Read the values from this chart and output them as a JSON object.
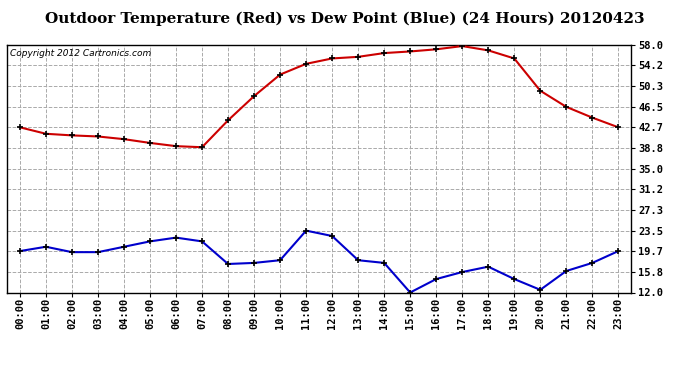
{
  "title": "Outdoor Temperature (Red) vs Dew Point (Blue) (24 Hours) 20120423",
  "copyright_text": "Copyright 2012 Cartronics.com",
  "hours": [
    "00:00",
    "01:00",
    "02:00",
    "03:00",
    "04:00",
    "05:00",
    "06:00",
    "07:00",
    "08:00",
    "09:00",
    "10:00",
    "11:00",
    "12:00",
    "13:00",
    "14:00",
    "15:00",
    "16:00",
    "17:00",
    "18:00",
    "19:00",
    "20:00",
    "21:00",
    "22:00",
    "23:00"
  ],
  "temp_red": [
    42.7,
    41.5,
    41.2,
    41.0,
    40.5,
    39.8,
    39.2,
    39.0,
    44.0,
    48.5,
    52.5,
    54.5,
    55.5,
    55.8,
    56.5,
    56.8,
    57.2,
    57.8,
    57.0,
    55.5,
    49.5,
    46.5,
    44.5,
    42.7
  ],
  "dew_blue": [
    19.7,
    20.5,
    19.5,
    19.5,
    20.5,
    21.5,
    22.2,
    21.5,
    17.3,
    17.5,
    18.0,
    23.5,
    22.5,
    18.0,
    17.5,
    12.0,
    14.5,
    15.8,
    16.8,
    14.5,
    12.5,
    16.0,
    17.5,
    19.7
  ],
  "yticks": [
    12.0,
    15.8,
    19.7,
    23.5,
    27.3,
    31.2,
    35.0,
    38.8,
    42.7,
    46.5,
    50.3,
    54.2,
    58.0
  ],
  "ymin": 12.0,
  "ymax": 58.0,
  "red_color": "#cc0000",
  "blue_color": "#0000cc",
  "bg_color": "#ffffff",
  "plot_bg_color": "#ffffff",
  "grid_color": "#aaaaaa",
  "grid_style": "--",
  "title_fontsize": 11,
  "tick_fontsize": 7.5,
  "copyright_fontsize": 6.5
}
